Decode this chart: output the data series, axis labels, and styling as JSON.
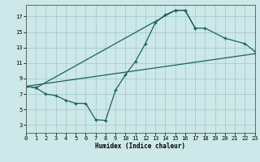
{
  "xlabel": "Humidex (Indice chaleur)",
  "xlim": [
    0,
    23
  ],
  "ylim": [
    2,
    18.5
  ],
  "yticks": [
    3,
    5,
    7,
    9,
    11,
    13,
    15,
    17
  ],
  "xticks": [
    0,
    1,
    2,
    3,
    4,
    5,
    6,
    7,
    8,
    9,
    10,
    11,
    12,
    13,
    14,
    15,
    16,
    17,
    18,
    19,
    20,
    21,
    22,
    23
  ],
  "bg_color": "#cce8e8",
  "grid_color": "#aacccc",
  "line_color": "#1a6060",
  "curve1_x": [
    0,
    1,
    2,
    3,
    4,
    5,
    6,
    7,
    8,
    9,
    10,
    11,
    12,
    13,
    14,
    15,
    16,
    17
  ],
  "curve1_y": [
    8.0,
    7.8,
    7.0,
    6.8,
    6.2,
    5.8,
    5.8,
    3.7,
    3.6,
    7.5,
    9.5,
    11.2,
    13.5,
    16.2,
    17.2,
    17.8,
    17.8,
    15.5
  ],
  "curve2_x": [
    0,
    1,
    15,
    16,
    17,
    18,
    20,
    22,
    23
  ],
  "curve2_y": [
    8.0,
    7.8,
    17.8,
    17.8,
    15.5,
    15.5,
    14.2,
    13.5,
    12.5
  ],
  "curve3_x": [
    0,
    23
  ],
  "curve3_y": [
    8.0,
    12.2
  ]
}
